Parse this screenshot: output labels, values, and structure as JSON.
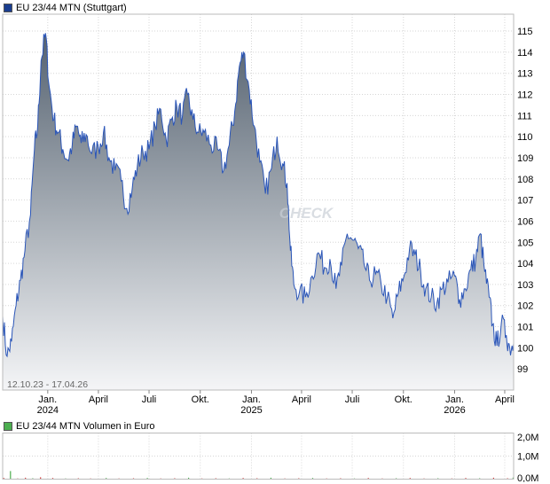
{
  "chart_data": [
    {
      "type": "area",
      "legend": {
        "label": "EU 23/44 MTN (Stuttgart)",
        "color": "#1a3d8f",
        "placement": "top-left"
      },
      "date_range_label": "12.10.23 - 17.04.26",
      "watermark": "CHECK",
      "ylim": [
        98,
        115.8
      ],
      "y_ticks": [
        "115",
        "114",
        "113",
        "112",
        "111",
        "110",
        "109",
        "108",
        "107",
        "106",
        "105",
        "104",
        "103",
        "102",
        "101",
        "100",
        "99"
      ],
      "x_ticks": [
        {
          "label": "Jan.",
          "sublabel": "2024"
        },
        {
          "label": "April",
          "sublabel": ""
        },
        {
          "label": "Juli",
          "sublabel": ""
        },
        {
          "label": "Okt.",
          "sublabel": ""
        },
        {
          "label": "Jan.",
          "sublabel": "2025"
        },
        {
          "label": "April",
          "sublabel": ""
        },
        {
          "label": "Juli",
          "sublabel": ""
        },
        {
          "label": "Okt.",
          "sublabel": ""
        },
        {
          "label": "Jan.",
          "sublabel": "2026"
        },
        {
          "label": "April",
          "sublabel": ""
        }
      ],
      "x_ticks_dates": [
        "2024-01-01",
        "2024-04-01",
        "2024-07-01",
        "2024-10-01",
        "2025-01-01",
        "2025-04-01",
        "2025-07-01",
        "2025-10-01",
        "2026-01-01",
        "2026-04-01"
      ],
      "grid": true,
      "colors": {
        "line": "#2a55b8",
        "fill_top": "#556270",
        "fill_bottom": "#f4f5f7"
      },
      "series": [
        {
          "name": "EU 23/44 MTN (Stuttgart)",
          "points": [
            [
              "2023-10-12",
              101.5
            ],
            [
              "2023-10-20",
              99.6
            ],
            [
              "2023-10-28",
              100.3
            ],
            [
              "2023-11-05",
              102.0
            ],
            [
              "2023-11-13",
              103.2
            ],
            [
              "2023-11-21",
              104.6
            ],
            [
              "2023-12-01",
              106.3
            ],
            [
              "2023-12-08",
              109.4
            ],
            [
              "2023-12-14",
              110.5
            ],
            [
              "2023-12-20",
              113.6
            ],
            [
              "2023-12-28",
              114.9
            ],
            [
              "2024-01-04",
              112.3
            ],
            [
              "2024-01-12",
              110.8
            ],
            [
              "2024-01-20",
              110.2
            ],
            [
              "2024-01-28",
              109.4
            ],
            [
              "2024-02-06",
              108.9
            ],
            [
              "2024-02-14",
              109.6
            ],
            [
              "2024-02-22",
              110.5
            ],
            [
              "2024-03-01",
              109.7
            ],
            [
              "2024-03-10",
              110.1
            ],
            [
              "2024-03-20",
              109.2
            ],
            [
              "2024-04-01",
              109.5
            ],
            [
              "2024-04-10",
              110.2
            ],
            [
              "2024-04-20",
              109.0
            ],
            [
              "2024-05-01",
              108.4
            ],
            [
              "2024-05-12",
              107.9
            ],
            [
              "2024-05-22",
              106.6
            ],
            [
              "2024-06-01",
              107.6
            ],
            [
              "2024-06-10",
              108.6
            ],
            [
              "2024-06-20",
              109.3
            ],
            [
              "2024-07-01",
              109.4
            ],
            [
              "2024-07-12",
              110.5
            ],
            [
              "2024-07-22",
              111.3
            ],
            [
              "2024-08-01",
              109.8
            ],
            [
              "2024-08-10",
              110.8
            ],
            [
              "2024-08-20",
              111.4
            ],
            [
              "2024-08-30",
              111.0
            ],
            [
              "2024-09-08",
              112.0
            ],
            [
              "2024-09-18",
              110.8
            ],
            [
              "2024-09-28",
              110.2
            ],
            [
              "2024-10-08",
              110.2
            ],
            [
              "2024-10-20",
              109.6
            ],
            [
              "2024-11-01",
              109.4
            ],
            [
              "2024-11-12",
              108.4
            ],
            [
              "2024-11-22",
              109.6
            ],
            [
              "2024-12-02",
              111.2
            ],
            [
              "2024-12-10",
              113.3
            ],
            [
              "2024-12-18",
              114.0
            ],
            [
              "2024-12-28",
              112.2
            ],
            [
              "2025-01-06",
              110.5
            ],
            [
              "2025-01-16",
              108.8
            ],
            [
              "2025-01-26",
              107.3
            ],
            [
              "2025-02-06",
              108.5
            ],
            [
              "2025-02-16",
              110.0
            ],
            [
              "2025-02-26",
              108.7
            ],
            [
              "2025-03-06",
              107.8
            ],
            [
              "2025-03-12",
              104.6
            ],
            [
              "2025-03-18",
              103.0
            ],
            [
              "2025-03-28",
              102.6
            ],
            [
              "2025-04-08",
              102.4
            ],
            [
              "2025-04-20",
              103.4
            ],
            [
              "2025-05-01",
              104.5
            ],
            [
              "2025-05-12",
              103.8
            ],
            [
              "2025-05-22",
              104.2
            ],
            [
              "2025-06-02",
              102.8
            ],
            [
              "2025-06-12",
              103.9
            ],
            [
              "2025-06-22",
              105.4
            ],
            [
              "2025-07-02",
              105.1
            ],
            [
              "2025-07-12",
              104.7
            ],
            [
              "2025-07-22",
              104.0
            ],
            [
              "2025-08-01",
              103.2
            ],
            [
              "2025-08-12",
              103.5
            ],
            [
              "2025-08-22",
              103.0
            ],
            [
              "2025-09-02",
              102.4
            ],
            [
              "2025-09-12",
              101.4
            ],
            [
              "2025-09-22",
              102.6
            ],
            [
              "2025-10-02",
              103.4
            ],
            [
              "2025-10-12",
              104.7
            ],
            [
              "2025-10-22",
              104.4
            ],
            [
              "2025-11-01",
              103.6
            ],
            [
              "2025-11-10",
              102.8
            ],
            [
              "2025-11-20",
              102.4
            ],
            [
              "2025-11-30",
              102.1
            ],
            [
              "2025-12-10",
              102.8
            ],
            [
              "2025-12-20",
              103.1
            ],
            [
              "2026-01-01",
              103.4
            ],
            [
              "2026-01-10",
              102.3
            ],
            [
              "2026-01-20",
              102.8
            ],
            [
              "2026-01-30",
              103.7
            ],
            [
              "2026-02-08",
              104.2
            ],
            [
              "2026-02-16",
              105.4
            ],
            [
              "2026-02-24",
              103.6
            ],
            [
              "2026-03-04",
              102.4
            ],
            [
              "2026-03-10",
              101.1
            ],
            [
              "2026-03-18",
              100.1
            ],
            [
              "2026-03-26",
              101.2
            ],
            [
              "2026-04-04",
              100.6
            ],
            [
              "2026-04-10",
              100.0
            ],
            [
              "2026-04-17",
              100.2
            ]
          ]
        }
      ]
    },
    {
      "type": "bar",
      "legend": {
        "label": "EU 23/44 MTN Volumen in Euro",
        "color": "#4caf50",
        "placement": "top-left"
      },
      "ylim": [
        0,
        2.0
      ],
      "y_ticks": [
        "2,0M",
        "1,0M",
        "0,0M"
      ],
      "grid": true,
      "colors": {
        "bar": "#d13b3b",
        "bar_alt": "#4caf50"
      },
      "series": [
        {
          "name": "EU 23/44 MTN Volumen in Euro",
          "unit": "M EUR",
          "points": [
            [
              "2023-10-14",
              0.05
            ],
            [
              "2023-10-26",
              0.35
            ],
            [
              "2023-11-08",
              0.03
            ],
            [
              "2023-11-22",
              0.06
            ],
            [
              "2023-12-05",
              0.04
            ],
            [
              "2023-12-19",
              0.08
            ],
            [
              "2024-01-10",
              0.05
            ],
            [
              "2024-02-02",
              0.03
            ],
            [
              "2024-02-25",
              0.04
            ],
            [
              "2024-03-18",
              0.03
            ],
            [
              "2024-04-15",
              0.05
            ],
            [
              "2024-05-08",
              0.03
            ],
            [
              "2024-06-03",
              0.04
            ],
            [
              "2024-06-28",
              0.05
            ],
            [
              "2024-07-22",
              0.03
            ],
            [
              "2024-08-16",
              0.04
            ],
            [
              "2024-09-10",
              0.06
            ],
            [
              "2024-10-04",
              0.03
            ],
            [
              "2024-10-29",
              0.04
            ],
            [
              "2024-11-22",
              0.03
            ],
            [
              "2024-12-17",
              0.05
            ],
            [
              "2025-01-11",
              0.04
            ],
            [
              "2025-02-05",
              0.06
            ],
            [
              "2025-03-02",
              0.03
            ],
            [
              "2025-03-27",
              0.04
            ],
            [
              "2025-04-21",
              0.05
            ],
            [
              "2025-05-16",
              0.03
            ],
            [
              "2025-06-10",
              0.04
            ],
            [
              "2025-07-05",
              0.03
            ],
            [
              "2025-07-30",
              0.05
            ],
            [
              "2025-08-24",
              0.03
            ],
            [
              "2025-09-18",
              0.04
            ],
            [
              "2025-10-13",
              0.05
            ],
            [
              "2025-11-07",
              0.03
            ],
            [
              "2025-12-02",
              0.04
            ],
            [
              "2025-12-27",
              0.03
            ],
            [
              "2026-01-21",
              0.05
            ],
            [
              "2026-02-15",
              0.04
            ],
            [
              "2026-03-12",
              0.06
            ],
            [
              "2026-04-06",
              0.04
            ],
            [
              "2026-04-16",
              0.07
            ]
          ]
        }
      ]
    }
  ]
}
